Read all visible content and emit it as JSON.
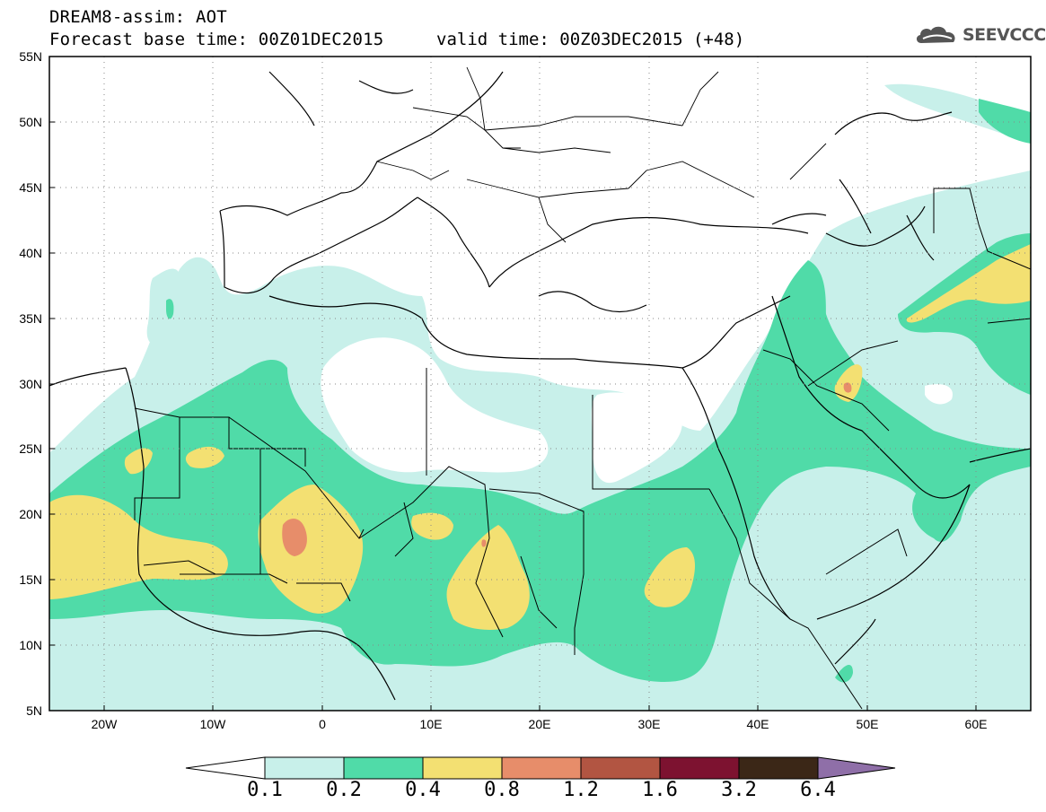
{
  "header": {
    "title": "DREAM8-assim: AOT",
    "base_time": "Forecast base time: 00Z01DEC2015",
    "valid_time": "valid time: 00Z03DEC2015 (+48)",
    "logo_text": "SEEVCCC",
    "logo_icon": "cloud-logo-icon"
  },
  "axes": {
    "lat_labels": [
      "55N",
      "50N",
      "45N",
      "40N",
      "35N",
      "30N",
      "25N",
      "20N",
      "15N",
      "10N",
      "5N"
    ],
    "lon_labels": [
      "20W",
      "10W",
      "0",
      "10E",
      "20E",
      "30E",
      "40E",
      "50E",
      "60E"
    ]
  },
  "legend": {
    "labels": [
      "0.1",
      "0.2",
      "0.4",
      "0.8",
      "1.2",
      "1.6",
      "3.2",
      "6.4"
    ],
    "colors": [
      "#c8f0ea",
      "#50dba8",
      "#f3e072",
      "#e78d6a",
      "#b25542",
      "#7d1230",
      "#3b2717",
      "#8f6fa8"
    ],
    "low_end_color": "#ffffff"
  },
  "map_colors": {
    "c1": "#c8f0ea",
    "c2": "#50dba8",
    "c3": "#f3e072",
    "c4": "#e78d6a",
    "border": "#000000"
  }
}
